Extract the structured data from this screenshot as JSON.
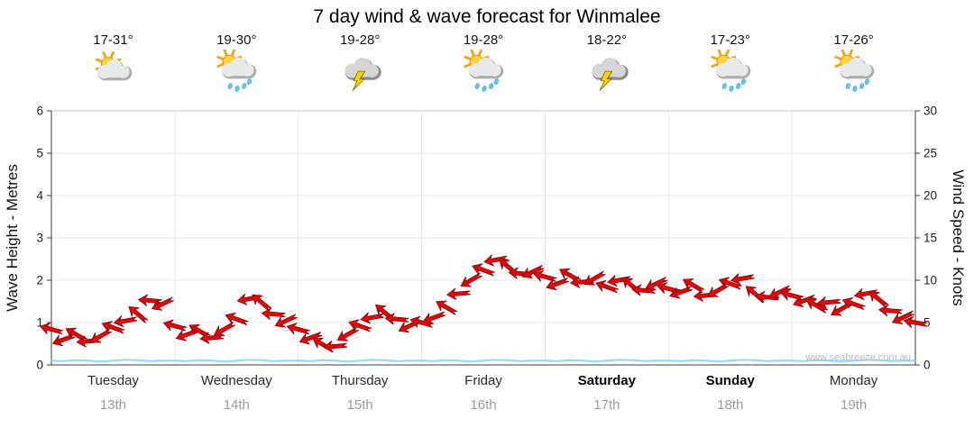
{
  "page": {
    "title": "7 day wind & wave forecast for Winmalee",
    "watermark": "www.seabreeze.com.au"
  },
  "days": [
    {
      "name": "Tuesday",
      "date": "13th",
      "temp": "17-31°",
      "icon": "partly-cloudy",
      "bold": false
    },
    {
      "name": "Wednesday",
      "date": "14th",
      "temp": "19-30°",
      "icon": "sun-showers",
      "bold": false
    },
    {
      "name": "Thursday",
      "date": "15th",
      "temp": "19-28°",
      "icon": "storm",
      "bold": false
    },
    {
      "name": "Friday",
      "date": "16th",
      "temp": "19-28°",
      "icon": "sun-showers",
      "bold": false
    },
    {
      "name": "Saturday",
      "date": "17th",
      "temp": "18-22°",
      "icon": "storm",
      "bold": true
    },
    {
      "name": "Sunday",
      "date": "18th",
      "temp": "17-23°",
      "icon": "sun-showers",
      "bold": true
    },
    {
      "name": "Monday",
      "date": "19th",
      "temp": "17-26°",
      "icon": "sun-showers",
      "bold": false
    }
  ],
  "chart_data": {
    "type": "line",
    "title": "7 day wind & wave forecast for Winmalee",
    "x_categories": [
      "Tuesday 13th",
      "Wednesday 14th",
      "Thursday 15th",
      "Friday 16th",
      "Saturday 17th",
      "Sunday 18th",
      "Monday 19th"
    ],
    "points_per_day": 10,
    "left_axis": {
      "label": "Wave Height - Metres",
      "min": 0,
      "max": 6,
      "ticks": [
        0,
        1,
        2,
        3,
        4,
        5,
        6
      ]
    },
    "right_axis": {
      "label": "Wind Speed - Knots",
      "min": 0,
      "max": 30,
      "ticks": [
        0,
        5,
        10,
        15,
        20,
        25,
        30
      ]
    },
    "grid": {
      "horizontal": true,
      "vertical_day_separators": true
    },
    "series": [
      {
        "name": "Wind Speed",
        "unit": "knots",
        "axis": "right",
        "color": "#E40009",
        "style": "wind-arrows",
        "values": [
          4.2,
          3.0,
          3.6,
          2.8,
          3.4,
          4.4,
          5.2,
          6.0,
          7.6,
          7.2,
          4.6,
          3.6,
          4.0,
          3.2,
          4.2,
          5.4,
          7.8,
          7.4,
          6.0,
          5.2,
          4.2,
          3.2,
          2.4,
          2.2,
          3.6,
          4.6,
          5.6,
          6.2,
          5.4,
          4.6,
          5.0,
          5.6,
          6.8,
          8.4,
          10.0,
          11.2,
          12.4,
          11.6,
          10.8,
          11.0,
          10.4,
          9.6,
          10.6,
          9.8,
          10.2,
          9.2,
          10.0,
          9.4,
          8.8,
          9.6,
          9.0,
          8.6,
          9.4,
          8.2,
          8.8,
          9.6,
          10.2,
          8.4,
          8.0,
          8.6,
          8.2,
          7.6,
          7.0,
          7.4,
          6.6,
          7.2,
          8.4,
          7.8,
          6.4,
          5.6,
          5.0
        ],
        "directions_deg": [
          195,
          160,
          210,
          175,
          150,
          200,
          170,
          220,
          185,
          155,
          195,
          160,
          210,
          175,
          150,
          200,
          170,
          220,
          185,
          155,
          195,
          160,
          210,
          175,
          150,
          200,
          170,
          220,
          185,
          155,
          195,
          160,
          210,
          175,
          150,
          200,
          170,
          220,
          185,
          155,
          195,
          160,
          210,
          175,
          150,
          200,
          170,
          220,
          185,
          155,
          195,
          160,
          210,
          175,
          150,
          200,
          170,
          220,
          185,
          155,
          195,
          160,
          210,
          175,
          150,
          200,
          170,
          220,
          185,
          155,
          190
        ]
      },
      {
        "name": "Wave Height",
        "unit": "metres",
        "axis": "left",
        "color": "#8FD8EE",
        "style": "line",
        "values": [
          0.1,
          0.09,
          0.11,
          0.1,
          0.08,
          0.1,
          0.12,
          0.11,
          0.09,
          0.1,
          0.1,
          0.09,
          0.11,
          0.1,
          0.08,
          0.1,
          0.12,
          0.11,
          0.09,
          0.1,
          0.1,
          0.09,
          0.11,
          0.1,
          0.08,
          0.1,
          0.12,
          0.11,
          0.09,
          0.1,
          0.1,
          0.09,
          0.11,
          0.1,
          0.08,
          0.1,
          0.12,
          0.11,
          0.09,
          0.1,
          0.1,
          0.09,
          0.11,
          0.1,
          0.08,
          0.1,
          0.12,
          0.11,
          0.09,
          0.1,
          0.1,
          0.09,
          0.11,
          0.1,
          0.08,
          0.1,
          0.12,
          0.11,
          0.09,
          0.1,
          0.1,
          0.09,
          0.11,
          0.1,
          0.08,
          0.1,
          0.12,
          0.11,
          0.09,
          0.1,
          0.1
        ]
      }
    ]
  }
}
